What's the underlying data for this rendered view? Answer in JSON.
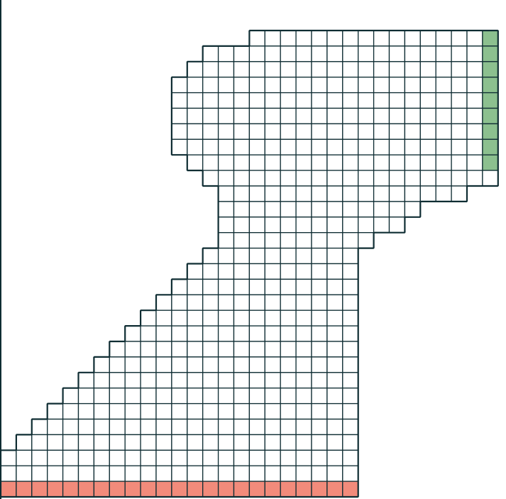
{
  "colors": {
    "line": "#0f2d33",
    "cell_fill": "#ffffff",
    "inlet_fill": "#f28b7b",
    "outlet_fill": "#8cc08f"
  },
  "grid": {
    "columns": 32,
    "rows": 30,
    "rows_spans": [
      {
        "row": 1,
        "from": 16,
        "to": 31
      },
      {
        "row": 2,
        "from": 13,
        "to": 31
      },
      {
        "row": 3,
        "from": 12,
        "to": 31
      },
      {
        "row": 4,
        "from": 11,
        "to": 31
      },
      {
        "row": 5,
        "from": 11,
        "to": 31
      },
      {
        "row": 6,
        "from": 11,
        "to": 31
      },
      {
        "row": 7,
        "from": 11,
        "to": 31
      },
      {
        "row": 8,
        "from": 11,
        "to": 31
      },
      {
        "row": 9,
        "from": 12,
        "to": 31
      },
      {
        "row": 10,
        "from": 13,
        "to": 31
      },
      {
        "row": 11,
        "from": 14,
        "to": 29
      },
      {
        "row": 12,
        "from": 14,
        "to": 26
      },
      {
        "row": 13,
        "from": 14,
        "to": 25
      },
      {
        "row": 14,
        "from": 14,
        "to": 23
      },
      {
        "row": 15,
        "from": 13,
        "to": 22
      },
      {
        "row": 16,
        "from": 12,
        "to": 22
      },
      {
        "row": 17,
        "from": 11,
        "to": 22
      },
      {
        "row": 18,
        "from": 10,
        "to": 22
      },
      {
        "row": 19,
        "from": 9,
        "to": 22
      },
      {
        "row": 20,
        "from": 8,
        "to": 22
      },
      {
        "row": 21,
        "from": 7,
        "to": 22
      },
      {
        "row": 22,
        "from": 6,
        "to": 22
      },
      {
        "row": 23,
        "from": 5,
        "to": 22
      },
      {
        "row": 24,
        "from": 4,
        "to": 22
      },
      {
        "row": 25,
        "from": 3,
        "to": 22
      },
      {
        "row": 26,
        "from": 2,
        "to": 22
      },
      {
        "row": 27,
        "from": 1,
        "to": 22
      },
      {
        "row": 28,
        "from": 0,
        "to": 22
      },
      {
        "row": 29,
        "from": 0,
        "to": 22
      },
      {
        "row": 30,
        "from": 0,
        "to": 22
      }
    ],
    "inlet": {
      "row": 30,
      "from": 0,
      "to": 22
    },
    "outlet": {
      "column": 31,
      "from_row": 1,
      "to_row": 9
    }
  }
}
